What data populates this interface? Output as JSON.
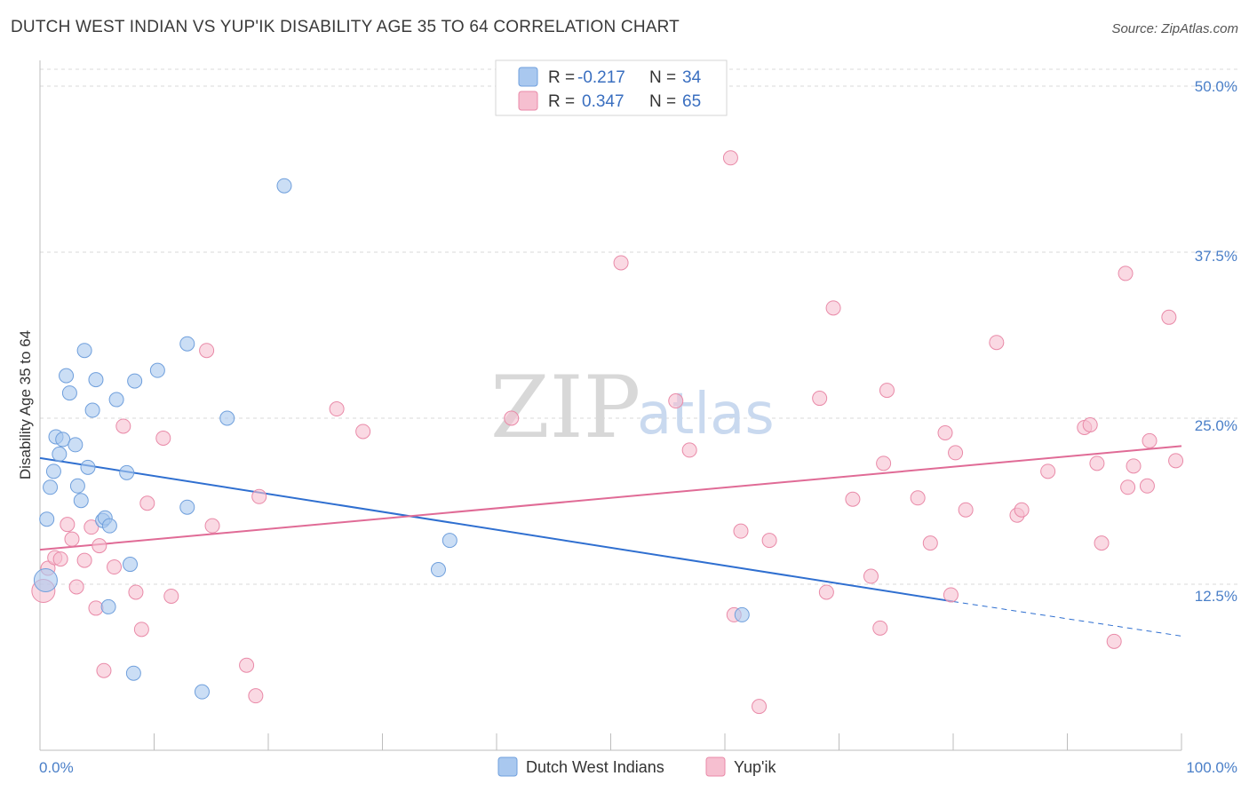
{
  "title": "DUTCH WEST INDIAN VS YUP'IK DISABILITY AGE 35 TO 64 CORRELATION CHART",
  "source": "Source: ZipAtlas.com",
  "watermark": {
    "zip": "ZIP",
    "atlas": "atlas"
  },
  "colors": {
    "blue_fill": "#a9c8ef",
    "blue_stroke": "#6f9fdc",
    "blue_line": "#2f6fd0",
    "pink_fill": "#f6bfd0",
    "pink_stroke": "#e98aa8",
    "pink_line": "#e06b96",
    "grid": "#d9d9d9",
    "tick_text": "#4a7fc8"
  },
  "legend": {
    "r_label": "R =",
    "n_label": "N =",
    "series": [
      {
        "r": "-0.217",
        "n": "34"
      },
      {
        "r": "0.347",
        "n": "65"
      }
    ]
  },
  "bottom_legend": [
    "Dutch West Indians",
    "Yup'ik"
  ],
  "chart_data": {
    "type": "scatter",
    "title": "DUTCH WEST INDIAN VS YUP'IK DISABILITY AGE 35 TO 64 CORRELATION CHART",
    "xlabel": "",
    "ylabel": "Disability Age 35 to 64",
    "xlim": [
      0,
      100
    ],
    "ylim": [
      0,
      50
    ],
    "x_tick_labels": [
      "0.0%",
      "100.0%"
    ],
    "y_ticks": [
      12.5,
      25.0,
      37.5,
      50.0
    ],
    "y_tick_labels": [
      "12.5%",
      "25.0%",
      "37.5%",
      "50.0%"
    ],
    "grid": true,
    "legend_position": "top-center",
    "series": [
      {
        "name": "Dutch West Indians",
        "r": -0.217,
        "n": 34,
        "trend": {
          "x0": 0,
          "y0": 22.0,
          "x1": 80,
          "y1": 11.2,
          "dashed_to_x": 100,
          "dashed_to_y": 8.6
        },
        "points": [
          [
            0.5,
            12.8
          ],
          [
            0.6,
            17.4
          ],
          [
            0.9,
            19.8
          ],
          [
            1.2,
            21.0
          ],
          [
            1.4,
            23.6
          ],
          [
            1.7,
            22.3
          ],
          [
            2.0,
            23.4
          ],
          [
            2.3,
            28.2
          ],
          [
            2.6,
            26.9
          ],
          [
            3.1,
            23.0
          ],
          [
            3.3,
            19.9
          ],
          [
            3.6,
            18.8
          ],
          [
            3.9,
            30.1
          ],
          [
            4.2,
            21.3
          ],
          [
            4.6,
            25.6
          ],
          [
            4.9,
            27.9
          ],
          [
            5.5,
            17.3
          ],
          [
            5.7,
            17.5
          ],
          [
            6.0,
            10.8
          ],
          [
            6.1,
            16.9
          ],
          [
            6.7,
            26.4
          ],
          [
            7.6,
            20.9
          ],
          [
            7.9,
            14.0
          ],
          [
            8.2,
            5.8
          ],
          [
            8.3,
            27.8
          ],
          [
            10.3,
            28.6
          ],
          [
            12.9,
            18.3
          ],
          [
            12.9,
            30.6
          ],
          [
            14.2,
            4.4
          ],
          [
            16.4,
            25.0
          ],
          [
            21.4,
            42.5
          ],
          [
            34.9,
            13.6
          ],
          [
            35.9,
            15.8
          ],
          [
            61.5,
            10.2
          ]
        ]
      },
      {
        "name": "Yup'ik",
        "r": 0.347,
        "n": 65,
        "trend": {
          "x0": 0,
          "y0": 15.1,
          "x1": 100,
          "y1": 22.9
        },
        "points": [
          [
            0.3,
            12.0
          ],
          [
            0.7,
            13.7
          ],
          [
            1.3,
            14.5
          ],
          [
            1.8,
            14.4
          ],
          [
            2.4,
            17.0
          ],
          [
            2.8,
            15.9
          ],
          [
            3.2,
            12.3
          ],
          [
            3.9,
            14.3
          ],
          [
            4.5,
            16.8
          ],
          [
            4.9,
            10.7
          ],
          [
            5.2,
            15.4
          ],
          [
            5.6,
            6.0
          ],
          [
            6.5,
            13.8
          ],
          [
            7.3,
            24.4
          ],
          [
            8.4,
            11.9
          ],
          [
            8.9,
            9.1
          ],
          [
            9.4,
            18.6
          ],
          [
            10.8,
            23.5
          ],
          [
            11.5,
            11.6
          ],
          [
            14.6,
            30.1
          ],
          [
            15.1,
            16.9
          ],
          [
            18.1,
            6.4
          ],
          [
            18.9,
            4.1
          ],
          [
            19.2,
            19.1
          ],
          [
            26.0,
            25.7
          ],
          [
            28.3,
            24.0
          ],
          [
            41.3,
            25.0
          ],
          [
            50.9,
            36.7
          ],
          [
            55.7,
            26.3
          ],
          [
            56.9,
            22.6
          ],
          [
            60.5,
            44.6
          ],
          [
            60.8,
            10.2
          ],
          [
            61.4,
            16.5
          ],
          [
            63.0,
            3.3
          ],
          [
            63.9,
            15.8
          ],
          [
            68.3,
            26.5
          ],
          [
            68.9,
            11.9
          ],
          [
            69.5,
            33.3
          ],
          [
            71.2,
            18.9
          ],
          [
            72.8,
            13.1
          ],
          [
            73.6,
            9.2
          ],
          [
            73.9,
            21.6
          ],
          [
            74.2,
            27.1
          ],
          [
            76.9,
            19.0
          ],
          [
            78.0,
            15.6
          ],
          [
            79.3,
            23.9
          ],
          [
            79.8,
            11.7
          ],
          [
            80.2,
            22.4
          ],
          [
            81.1,
            18.1
          ],
          [
            83.8,
            30.7
          ],
          [
            85.6,
            17.7
          ],
          [
            86.0,
            18.1
          ],
          [
            88.3,
            21.0
          ],
          [
            91.5,
            24.3
          ],
          [
            92.0,
            24.5
          ],
          [
            92.6,
            21.6
          ],
          [
            93.0,
            15.6
          ],
          [
            94.1,
            8.2
          ],
          [
            95.1,
            35.9
          ],
          [
            95.3,
            19.8
          ],
          [
            95.8,
            21.4
          ],
          [
            97.0,
            19.9
          ],
          [
            97.2,
            23.3
          ],
          [
            98.9,
            32.6
          ],
          [
            99.5,
            21.8
          ]
        ]
      }
    ]
  }
}
